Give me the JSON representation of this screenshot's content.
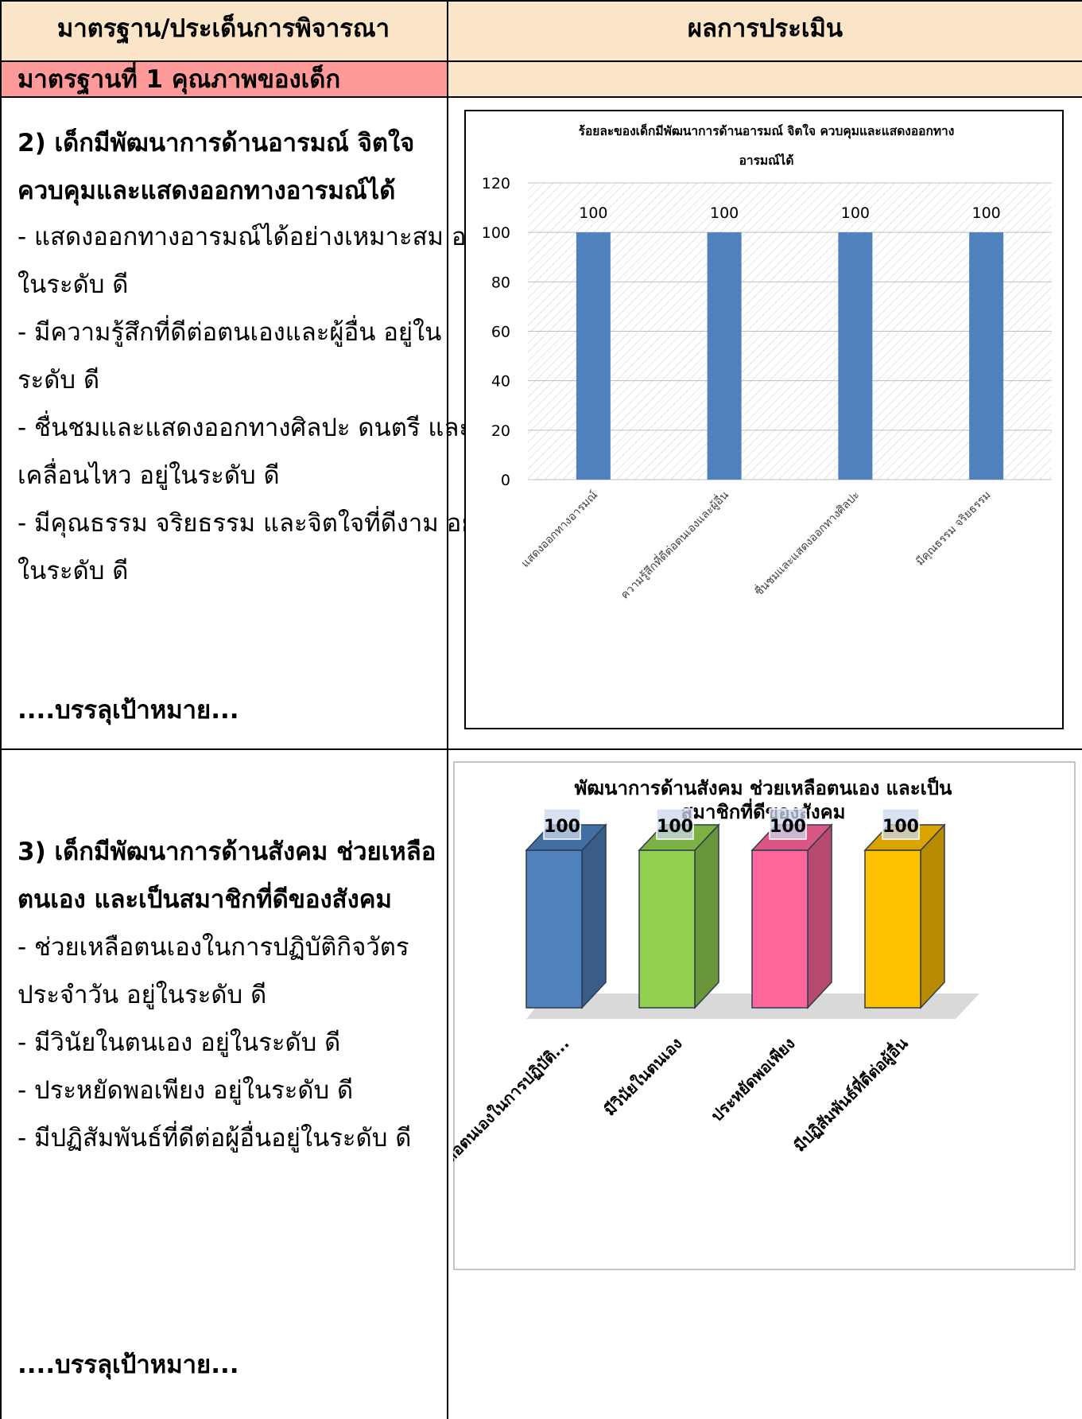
{
  "table": {
    "header": {
      "col1": "มาตรฐาน/ประเด็นการพิจารณา",
      "col2": "ผลการประเมิน"
    },
    "standard_title": "มาตรฐานที่  1  คุณภาพของเด็ก",
    "section2": {
      "heading_line1": "2)  เด็กมีพัฒนาการด้านอารมณ์ จิตใจ",
      "heading_line2": "ควบคุมและแสดงออกทางอารมณ์ได้",
      "lines": [
        "- แสดงออกทางอารมณ์ได้อย่างเหมาะสม อยู่",
        "ในระดับ ดี",
        "- มีความรู้สึกที่ดีต่อตนเองและผู้อื่น  อยู่ใน",
        "ระดับ ดี",
        "- ชื่นชมและแสดงออกทางศิลปะ ดนตรี และ",
        "เคลื่อนไหว อยู่ในระดับ ดี",
        "- มีคุณธรรม จริยธรรม และจิตใจที่ดีงาม อยู่",
        "ในระดับ ดี"
      ],
      "target": "....บรรลุเป้าหมาย..."
    },
    "section3": {
      "heading_line1": "3) เด็กมีพัฒนาการด้านสังคม ช่วยเหลือ",
      "heading_line2": "ตนเอง และเป็นสมาชิกที่ดีของสังคม",
      "lines": [
        "-    ช่วยเหลือตนเองในการปฏิบัติกิจวัตร",
        "ประจำวัน อยู่ในระดับ ดี",
        "-    มีวินัยในตนเอง อยู่ในระดับ ดี",
        "-    ประหยัดพอเพียง อยู่ในระดับ ดี",
        "-    มีปฏิสัมพันธ์ที่ดีต่อผู้อื่นอยู่ในระดับ ดี"
      ],
      "target": "....บรรลุเป้าหมาย..."
    }
  },
  "chart_data": [
    {
      "type": "bar",
      "title_line1": "ร้อยละของเด็กมีพัฒนาการด้านอารมณ์ จิตใจ ควบคุมและแสดงออกทาง",
      "title_line2": "อารมณ์ได้",
      "categories": [
        "แสดงออกทางอารมณ์",
        "ความรู้สึกที่ดีต่อตนเองและผู้อื่น",
        "ชื่นชมและแสดงออกทางศิลปะ",
        "มีคุณธรรม จริยธรรม"
      ],
      "values": [
        100,
        100,
        100,
        100
      ],
      "value_labels": [
        "100",
        "100",
        "100",
        "100"
      ],
      "yticks": [
        "0",
        "20",
        "40",
        "60",
        "80",
        "100",
        "120"
      ],
      "ylim": [
        0,
        120
      ],
      "grid": true,
      "bar_color": "#4f81bd"
    },
    {
      "type": "bar",
      "style": "3d",
      "title_line1": "พัฒนาการด้านสังคม ช่วยเหลือตนเอง และเป็น",
      "title_line2": "สมาชิกที่ดีของสังคม",
      "categories": [
        "ช่วยเหลือตนเองในการปฏิบัติ...",
        "มีวินัยในตนเอง",
        "ประหยัดพอเพียง",
        "มีปฏิสัมพันธ์ที่ดีต่อผู้อื่น"
      ],
      "values": [
        100,
        100,
        100,
        100
      ],
      "value_labels": [
        "100",
        "100",
        "100",
        "100"
      ],
      "ylim": [
        0,
        100
      ],
      "colors": [
        "#4f81bd",
        "#92d050",
        "#ff6699",
        "#ffc000"
      ]
    }
  ]
}
